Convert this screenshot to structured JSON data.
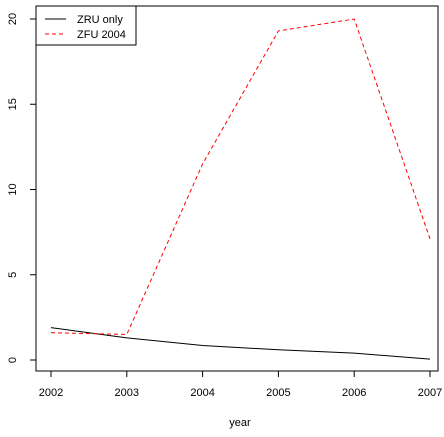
{
  "chart_data": {
    "type": "line",
    "title": "",
    "xlabel": "year",
    "ylabel": "",
    "x": [
      2002,
      2003,
      2004,
      2005,
      2006,
      2007
    ],
    "xlim": [
      2002,
      2007
    ],
    "ylim": [
      0,
      20
    ],
    "x_ticks": [
      "2002",
      "2003",
      "2004",
      "2005",
      "2006",
      "2007"
    ],
    "y_ticks": [
      "0",
      "5",
      "10",
      "15",
      "20"
    ],
    "grid": false,
    "legend_position": "top-left",
    "series": [
      {
        "name": "ZRU only",
        "values": [
          1.9,
          1.3,
          0.85,
          0.6,
          0.4,
          0.05
        ],
        "color": "#000000",
        "line_style": "solid"
      },
      {
        "name": "ZFU 2004",
        "values": [
          1.6,
          1.5,
          11.5,
          19.3,
          20.0,
          7.1
        ],
        "color": "#ff0000",
        "line_style": "dashed"
      }
    ]
  }
}
